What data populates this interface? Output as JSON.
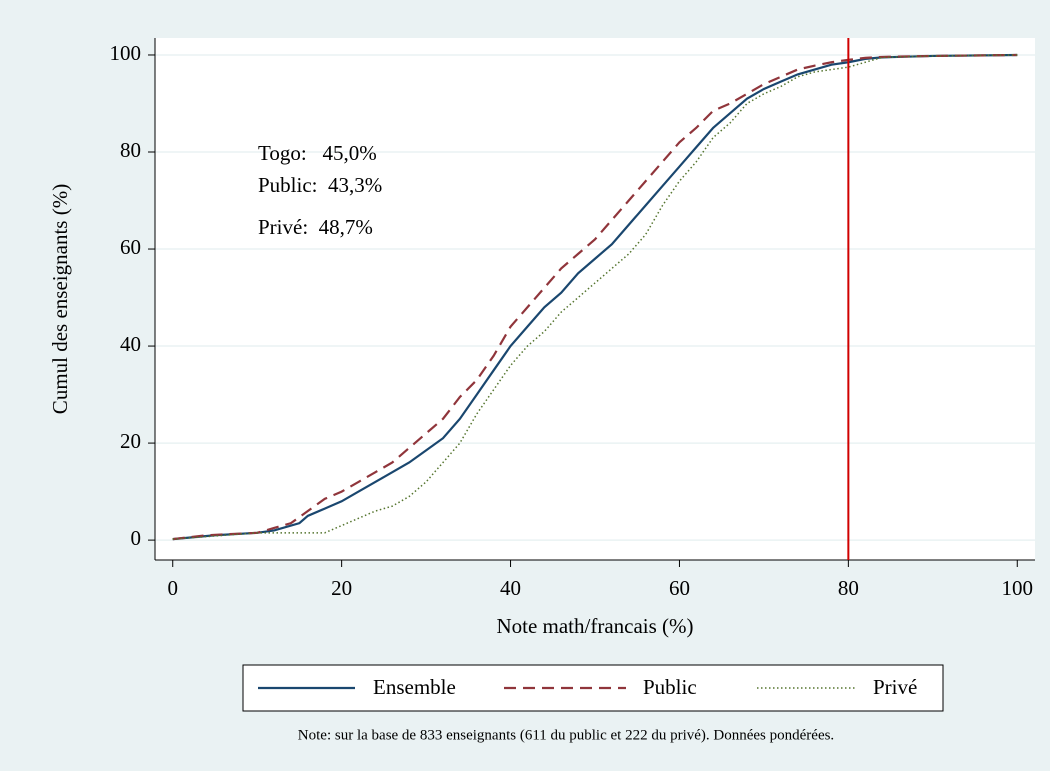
{
  "chart_data": {
    "type": "line",
    "xlabel": "Note math/francais (%)",
    "ylabel": "Cumul des enseignants (%)",
    "xlim": [
      -2.1,
      102.1
    ],
    "ylim": [
      -4.1,
      103.5
    ],
    "xticks": [
      0,
      20,
      40,
      60,
      80,
      100
    ],
    "yticks": [
      0,
      20,
      40,
      60,
      80,
      100
    ],
    "grid": true,
    "reference_line": {
      "x": 80,
      "color": "#d00000"
    },
    "annotations": [
      "Togo:   45,0%",
      "Public:  43,3%",
      "Privé:  48,7%"
    ],
    "note": "Note: sur la base de 833 enseignants (611 du public et 222 du privé). Données pondérées.",
    "series": [
      {
        "name": "Ensemble",
        "color": "#1a476f",
        "style": "solid",
        "x": [
          0,
          5,
          10,
          12,
          15,
          16,
          18,
          20,
          22,
          25,
          28,
          30,
          32,
          34,
          36,
          38,
          40,
          42,
          44,
          46,
          48,
          50,
          52,
          54,
          56,
          58,
          60,
          62,
          64,
          66,
          68,
          70,
          72,
          74,
          76,
          78,
          80,
          82,
          84,
          90,
          100
        ],
        "values": [
          0.2,
          1,
          1.5,
          2,
          3.5,
          5,
          6.5,
          8,
          10,
          13,
          16,
          18.5,
          21,
          25,
          30,
          35,
          40,
          44,
          48,
          51,
          55,
          58,
          61,
          65,
          69,
          73,
          77,
          81,
          85,
          88,
          91,
          93,
          94.5,
          96,
          97,
          98,
          98.5,
          99.2,
          99.5,
          99.8,
          100
        ]
      },
      {
        "name": "Public",
        "color": "#90353b",
        "style": "dash",
        "x": [
          0,
          4,
          10,
          12,
          14,
          16,
          18,
          20,
          22,
          24,
          26,
          28,
          30,
          32,
          34,
          36,
          38,
          40,
          42,
          44,
          46,
          48,
          50,
          52,
          54,
          56,
          58,
          60,
          62,
          64,
          66,
          68,
          70,
          72,
          74,
          76,
          78,
          80,
          82,
          84,
          90,
          100
        ],
        "values": [
          0.2,
          1,
          1.5,
          2.5,
          3.5,
          6,
          8.5,
          10,
          12,
          14,
          16,
          19,
          22,
          25,
          29.5,
          33,
          38,
          44,
          48,
          52,
          56,
          59,
          62,
          66,
          70,
          74,
          78,
          82,
          85,
          88.5,
          90,
          92,
          94,
          95.5,
          97,
          97.8,
          98.5,
          99,
          99.4,
          99.6,
          99.8,
          100
        ]
      },
      {
        "name": "Privé",
        "color": "#55752f",
        "style": "dot",
        "x": [
          0,
          10,
          18,
          20,
          22,
          24,
          26,
          28,
          30,
          32,
          34,
          36,
          38,
          40,
          42,
          44,
          46,
          48,
          50,
          52,
          54,
          56,
          58,
          60,
          62,
          64,
          66,
          68,
          70,
          72,
          74,
          76,
          78,
          80,
          82,
          84,
          90,
          100
        ],
        "values": [
          0.2,
          1.5,
          1.5,
          3,
          4.5,
          6,
          7,
          9,
          12,
          16,
          20,
          26,
          31,
          36,
          40,
          43,
          47,
          50,
          53,
          56,
          59,
          63,
          69,
          74,
          78,
          83,
          86,
          90,
          92,
          93.5,
          95.5,
          96.5,
          97,
          97.5,
          98.5,
          99.5,
          99.8,
          100
        ]
      }
    ]
  }
}
